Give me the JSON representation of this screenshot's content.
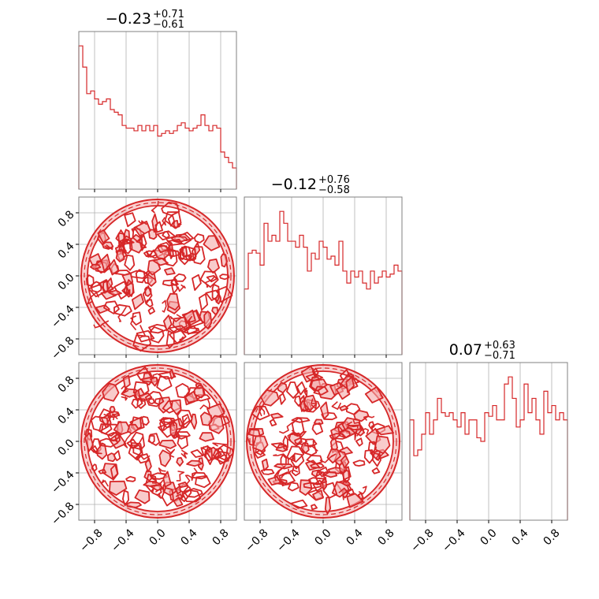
{
  "chart_data": {
    "type": "corner",
    "color": "#d62728",
    "fill_color": "#f4a9a9",
    "grid": true,
    "axis_range": [
      -1.0,
      1.0
    ],
    "ticks": [
      -0.8,
      -0.4,
      0.0,
      0.4,
      0.8
    ],
    "tick_labels": [
      "−0.8",
      "−0.4",
      "0.0",
      "0.4",
      "0.8"
    ],
    "titles": [
      {
        "median": "−0.23",
        "plus": "+0.71",
        "minus": "−0.61"
      },
      {
        "median": "−0.12",
        "plus": "+0.76",
        "minus": "−0.58"
      },
      {
        "median": "0.07",
        "plus": "+0.63",
        "minus": "−0.71"
      }
    ],
    "histograms": [
      {
        "bins": 40,
        "range": [
          -1,
          1
        ],
        "counts": [
          27,
          23,
          18,
          18.5,
          17,
          16,
          16.5,
          17,
          15,
          14.5,
          14,
          12,
          11.5,
          11.5,
          11,
          12,
          11,
          12,
          11,
          12,
          10,
          10.5,
          11,
          10.5,
          11,
          12,
          12.5,
          11.5,
          11,
          11.5,
          12,
          14,
          12,
          11,
          12,
          11.5,
          7,
          6,
          5,
          4
        ]
      },
      {
        "bins": 40,
        "range": [
          -1,
          1
        ],
        "counts": [
          11,
          17,
          17.5,
          17,
          15,
          22,
          19,
          20,
          19,
          24,
          22,
          19,
          19,
          18,
          20,
          18,
          14,
          17,
          16,
          19,
          18,
          16,
          16.5,
          15,
          19,
          14,
          12,
          14,
          13,
          14,
          12,
          11,
          14,
          12,
          13,
          14,
          13,
          13.5,
          15,
          14
        ]
      },
      {
        "bins": 40,
        "range": [
          -1,
          1
        ],
        "counts": [
          14,
          9,
          9.8,
          12,
          15,
          12,
          14,
          17,
          15,
          14.5,
          15,
          14,
          13,
          15,
          12,
          14,
          14,
          11.5,
          11,
          15,
          14.5,
          16,
          14,
          14,
          19,
          20,
          17,
          13,
          14,
          19,
          15,
          17,
          14,
          12,
          18,
          15,
          16,
          14,
          15,
          14
        ]
      }
    ],
    "panels_2d": [
      {
        "row": 1,
        "col": 0,
        "x_param": 0,
        "y_param": 1
      },
      {
        "row": 2,
        "col": 0,
        "x_param": 0,
        "y_param": 2
      },
      {
        "row": 2,
        "col": 1,
        "x_param": 1,
        "y_param": 2
      }
    ]
  }
}
